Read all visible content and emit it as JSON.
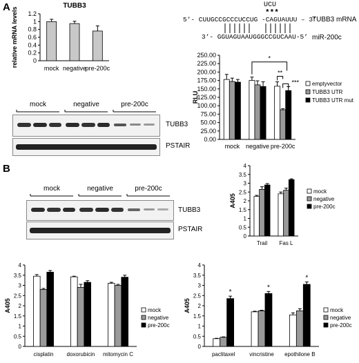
{
  "panel_a": {
    "letter": "A",
    "mirna_duplex": {
      "top_strand": "5’- CUUGCCGCCCUCCUG -CAGUAUUU – 3’",
      "top_label": "TUBB3 mRNA",
      "bottom_strand": "3’- GGUAGUAAUGGGCCGUCAAU-5’",
      "bottom_label": "miR-200c",
      "mutation_seq": "UCU",
      "mutation_marks": "***"
    },
    "blot": {
      "lane_groups": [
        "mock",
        "negative",
        "pre-200c"
      ],
      "bands": [
        "TUBB3",
        "PSTAIR"
      ]
    }
  },
  "panel_b": {
    "letter": "B",
    "blot": {
      "lane_groups": [
        "mock",
        "negative",
        "pre-200c"
      ],
      "bands": [
        "TUBB3",
        "PSTAIR"
      ]
    }
  },
  "colors": {
    "white_bar": "#ffffff",
    "gray_bar": "#9a9a9a",
    "black_bar": "#000000"
  },
  "chart_data": [
    {
      "id": "mrna",
      "type": "bar",
      "title": "TUBB3",
      "ylabel": "relative mRNA levels",
      "categories": [
        "mock",
        "negative",
        "pre-200c"
      ],
      "values": [
        1.0,
        0.95,
        0.76
      ],
      "errors": [
        0.06,
        0.06,
        0.13
      ],
      "ylim": [
        0,
        1.2
      ],
      "yticks": [
        0,
        0.2,
        0.4,
        0.6,
        0.8,
        1.0,
        1.2
      ],
      "ytick_labels": [
        "0",
        "0.2",
        "0.4",
        "0.6",
        "0.8",
        "1",
        "1.2"
      ],
      "legend": [],
      "series": [
        {
          "values": [
            1.0,
            0.95,
            0.76
          ],
          "errors": [
            0.06,
            0.06,
            0.13
          ],
          "color": "#c8c8c8"
        }
      ],
      "annotations": []
    },
    {
      "id": "rlu",
      "type": "bar",
      "ylabel": "RLU",
      "categories": [
        "mock",
        "negative",
        "pre-200c"
      ],
      "ylim": [
        0,
        250
      ],
      "yticks": [
        0,
        25,
        50,
        75,
        100,
        125,
        150,
        175,
        200,
        225,
        250
      ],
      "ytick_labels": [
        "0.00",
        "25.00",
        "50.00",
        "75.00",
        "100.00",
        "125.00",
        "150.00",
        "175.00",
        "200.00",
        "225.00",
        "250.00"
      ],
      "legend": [
        "emptyvector",
        "TUBB3 UTR",
        "TUBB3 UTR mut"
      ],
      "legend_position": "right",
      "series": [
        {
          "name": "emptyvector",
          "values": [
            178,
            175,
            158
          ],
          "errors": [
            15,
            10,
            13
          ],
          "color": "#ffffff"
        },
        {
          "name": "TUBB3 UTR",
          "values": [
            172,
            162,
            88
          ],
          "errors": [
            10,
            12,
            3
          ],
          "color": "#9a9a9a"
        },
        {
          "name": "TUBB3 UTR mut",
          "values": [
            170,
            157,
            145
          ],
          "errors": [
            8,
            14,
            12
          ],
          "color": "#000000"
        }
      ],
      "annotations": [
        "*",
        "**",
        "***"
      ]
    },
    {
      "id": "trail",
      "type": "bar",
      "ylabel": "A405",
      "categories": [
        "Trail",
        "Fas L"
      ],
      "ylim": [
        0,
        4
      ],
      "yticks": [
        0,
        0.5,
        1,
        1.5,
        2,
        2.5,
        3,
        3.5,
        4
      ],
      "ytick_labels": [
        "0",
        "0.5",
        "1",
        "1.5",
        "2",
        "2.5",
        "3",
        "3.5",
        "4"
      ],
      "legend": [
        "mock",
        "negative",
        "pre-200c"
      ],
      "legend_position": "right",
      "series": [
        {
          "name": "mock",
          "values": [
            2.25,
            2.4
          ],
          "errors": [
            0.06,
            0.1
          ],
          "color": "#ffffff"
        },
        {
          "name": "negative",
          "values": [
            2.65,
            2.6
          ],
          "errors": [
            0.15,
            0.12
          ],
          "color": "#9a9a9a"
        },
        {
          "name": "pre-200c",
          "values": [
            2.9,
            3.2
          ],
          "errors": [
            0.08,
            0.05
          ],
          "color": "#000000"
        }
      ],
      "annotations": []
    },
    {
      "id": "drugs1",
      "type": "bar",
      "ylabel": "A405",
      "categories": [
        "cisplatin",
        "doxorubicin",
        "mitomycin C"
      ],
      "ylim": [
        0,
        4
      ],
      "yticks": [
        0,
        0.5,
        1,
        1.5,
        2,
        2.5,
        3,
        3.5,
        4
      ],
      "ytick_labels": [
        "0",
        "0.5",
        "1",
        "1.5",
        "2",
        "2.5",
        "3",
        "3.5",
        "4"
      ],
      "legend": [
        "mock",
        "negative",
        "pre-200c"
      ],
      "legend_position": "right",
      "series": [
        {
          "name": "mock",
          "values": [
            3.45,
            3.42,
            3.1
          ],
          "errors": [
            0.08,
            0.03,
            0.05
          ],
          "color": "#ffffff"
        },
        {
          "name": "negative",
          "values": [
            2.8,
            2.9,
            3.0
          ],
          "errors": [
            0.05,
            0.15,
            0.05
          ],
          "color": "#9a9a9a"
        },
        {
          "name": "pre-200c",
          "values": [
            3.65,
            3.15,
            3.4
          ],
          "errors": [
            0.08,
            0.08,
            0.1
          ],
          "color": "#000000"
        }
      ],
      "annotations": []
    },
    {
      "id": "drugs2",
      "type": "bar",
      "ylabel": "A405",
      "categories": [
        "paclitaxel",
        "vincristine",
        "epothilone B"
      ],
      "ylim": [
        0,
        4
      ],
      "yticks": [
        0,
        0.5,
        1,
        1.5,
        2,
        2.5,
        3,
        3.5,
        4
      ],
      "ytick_labels": [
        "0",
        "0.5",
        "1",
        "1.5",
        "2",
        "2.5",
        "3",
        "3.5",
        "4"
      ],
      "legend": [
        "mock",
        "negative",
        "pre-200c"
      ],
      "legend_position": "right",
      "series": [
        {
          "name": "mock",
          "values": [
            0.38,
            1.7,
            1.55
          ],
          "errors": [
            0.02,
            0.03,
            0.1
          ],
          "color": "#ffffff"
        },
        {
          "name": "negative",
          "values": [
            0.45,
            1.75,
            1.75
          ],
          "errors": [
            0.02,
            0.03,
            0.1
          ],
          "color": "#9a9a9a"
        },
        {
          "name": "pre-200c",
          "values": [
            2.35,
            2.6,
            3.05
          ],
          "errors": [
            0.12,
            0.1,
            0.12
          ],
          "color": "#000000"
        }
      ],
      "annotations": [
        "*",
        "*",
        "*"
      ]
    }
  ]
}
